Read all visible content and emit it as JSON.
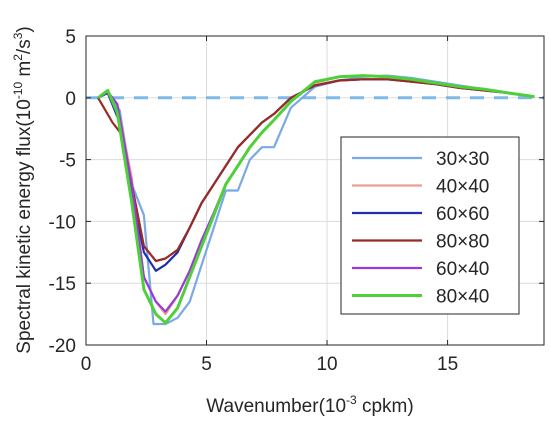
{
  "chart_data": {
    "type": "line",
    "xlabel_main": "Wavenumber(10",
    "xlabel_sup": "-3",
    "xlabel_tail": " cpkm)",
    "ylabel_main": "Spectral kinetic energy flux(10",
    "ylabel_sup1": "-10",
    "ylabel_mid": " m",
    "ylabel_sup2": "2",
    "ylabel_mid2": "/s",
    "ylabel_sup3": "3",
    "ylabel_tail": ")",
    "xlim": [
      0,
      19
    ],
    "ylim": [
      -20,
      5
    ],
    "x_ticks": [
      "0",
      "5",
      "10",
      "15"
    ],
    "y_ticks": [
      "5",
      "0",
      "-5",
      "-10",
      "-15",
      "-20"
    ],
    "grid": true,
    "legend_position": "right",
    "zero_line": {
      "value": 0,
      "color": "#7fb8e8"
    },
    "series": [
      {
        "name": "30×30",
        "color": "#79a9e6",
        "x": [
          0.5,
          0.9,
          1.4,
          1.9,
          2.4,
          2.8,
          3.3,
          3.8,
          4.3,
          4.8,
          5.3,
          5.8,
          6.3,
          6.8,
          7.3,
          7.8,
          8.5,
          9.5,
          10.5,
          11.5,
          12.5,
          13.5,
          14.5,
          15.5,
          16.5,
          17.5,
          18.6
        ],
        "y": [
          0,
          0.4,
          -1,
          -7,
          -9.5,
          -18.3,
          -18.3,
          -17.8,
          -16.5,
          -13.5,
          -10.5,
          -7.5,
          -7.5,
          -5,
          -4,
          -4,
          -0.8,
          0.9,
          1.4,
          1.7,
          1.8,
          1.6,
          1.3,
          1.0,
          0.7,
          0.4,
          0.1
        ]
      },
      {
        "name": "40×40",
        "color": "#e8a090",
        "x": [
          0.5,
          0.9,
          1.4,
          1.9,
          2.4,
          2.9,
          3.3,
          3.8,
          4.3,
          4.8,
          5.3,
          5.8,
          6.3,
          6.8,
          7.3,
          7.8,
          8.5,
          9.5,
          10.5,
          11.5,
          12.5,
          13.5,
          14.5,
          15.5,
          16.5,
          17.5,
          18.6
        ],
        "y": [
          0,
          0.5,
          -1.5,
          -6.5,
          -14.5,
          -16.5,
          -17.5,
          -16,
          -14,
          -11.5,
          -9.5,
          -7,
          -5.5,
          -4,
          -2.8,
          -1.8,
          -0.3,
          1.2,
          1.7,
          1.8,
          1.7,
          1.5,
          1.2,
          0.9,
          0.7,
          0.4,
          0.1
        ]
      },
      {
        "name": "60×60",
        "color": "#1f2fb0",
        "x": [
          0.5,
          0.9,
          1.4,
          1.9,
          2.4,
          2.9,
          3.3,
          3.8,
          4.3,
          4.8,
          5.3,
          5.8,
          6.3,
          6.8,
          7.3,
          7.8,
          8.5,
          9.5,
          10.5,
          11.5,
          12.5,
          13.5,
          14.5,
          15.5,
          16.5,
          17.5,
          18.6
        ],
        "y": [
          0,
          0.4,
          -2,
          -7.5,
          -12.5,
          -14,
          -13.5,
          -12.5,
          -10.5,
          -8.5,
          -7,
          -5.5,
          -4,
          -3,
          -2,
          -1.3,
          0,
          1.0,
          1.4,
          1.5,
          1.5,
          1.3,
          1.1,
          0.8,
          0.6,
          0.4,
          0.1
        ]
      },
      {
        "name": "80×80",
        "color": "#9a2a22",
        "x": [
          0.5,
          1.1,
          1.5,
          1.9,
          2.4,
          2.9,
          3.3,
          3.8,
          4.3,
          4.8,
          5.3,
          5.8,
          6.3,
          6.8,
          7.3,
          7.8,
          8.5,
          9.5,
          10.5,
          11.5,
          12.5,
          13.5,
          14.5,
          15.5,
          16.5,
          17.5,
          18.6
        ],
        "y": [
          0,
          -2,
          -3,
          -7,
          -12,
          -13.2,
          -13,
          -12.3,
          -10.5,
          -8.5,
          -7,
          -5.5,
          -4,
          -3,
          -2,
          -1.3,
          0,
          1.0,
          1.4,
          1.5,
          1.5,
          1.3,
          1.1,
          0.8,
          0.6,
          0.4,
          0.1
        ]
      },
      {
        "name": "60×40",
        "color": "#9a3ad8",
        "x": [
          0.5,
          0.9,
          1.3,
          1.9,
          2.4,
          2.9,
          3.3,
          3.8,
          4.3,
          4.8,
          5.3,
          5.8,
          6.3,
          6.8,
          7.3,
          7.8,
          8.5,
          9.5,
          10.5,
          11.5,
          12.5,
          13.5,
          14.5,
          15.5,
          16.5,
          17.5,
          18.6
        ],
        "y": [
          0,
          0.5,
          -0.5,
          -7,
          -14.5,
          -16.5,
          -17.3,
          -16,
          -14,
          -11.5,
          -9.3,
          -7,
          -5.5,
          -4,
          -2.8,
          -1.8,
          -0.3,
          1.3,
          1.7,
          1.8,
          1.7,
          1.5,
          1.2,
          0.9,
          0.7,
          0.4,
          0.1
        ]
      },
      {
        "name": "80×40",
        "color": "#4fcf3a",
        "x": [
          0.5,
          0.9,
          1.3,
          1.9,
          2.4,
          2.9,
          3.3,
          3.8,
          4.3,
          4.8,
          5.3,
          5.8,
          6.3,
          6.8,
          7.3,
          7.8,
          8.5,
          9.5,
          10.5,
          11.5,
          12.5,
          13.5,
          14.5,
          15.5,
          16.5,
          17.5,
          18.6
        ],
        "y": [
          0,
          0.6,
          -1.2,
          -8.5,
          -15.5,
          -17.5,
          -18.2,
          -17,
          -14.5,
          -12,
          -9.5,
          -7,
          -5.5,
          -4,
          -2.8,
          -1.8,
          -0.3,
          1.3,
          1.7,
          1.8,
          1.7,
          1.5,
          1.2,
          0.9,
          0.7,
          0.4,
          0.1
        ]
      }
    ]
  }
}
